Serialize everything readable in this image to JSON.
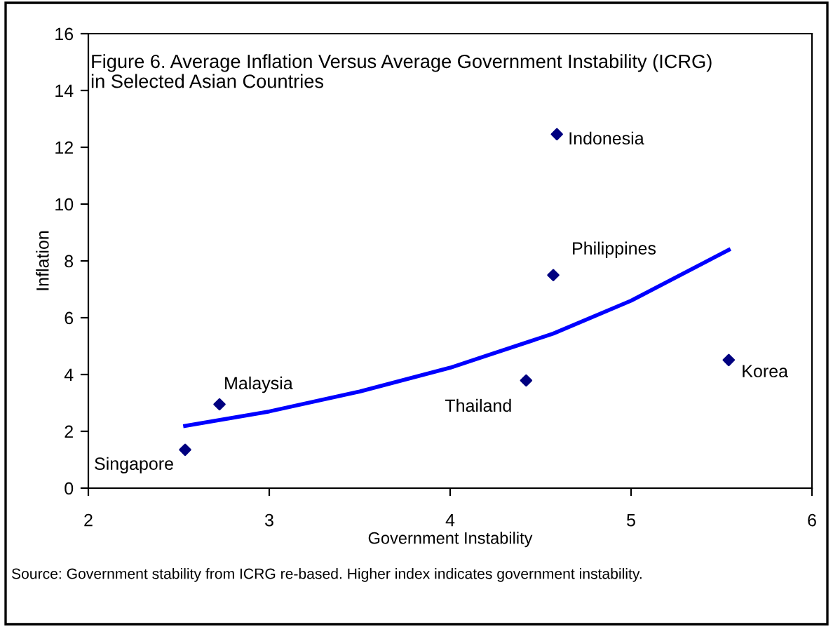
{
  "chart_data": {
    "type": "scatter",
    "title": "Figure 6. Average Inflation Versus Average Government Instability (ICRG) in Selected Asian Countries",
    "xlabel": "Government Instability",
    "ylabel": "Inflation",
    "series": [
      {
        "color": "#000080",
        "marker": "diamond",
        "x": [
          2.535,
          2.725,
          4.42,
          4.57,
          4.59,
          5.54
        ],
        "values": [
          1.35,
          2.95,
          3.79,
          7.5,
          12.46,
          4.51
        ]
      },
      {
        "type": "line",
        "color": "#0000ff",
        "marker": "none",
        "x": [
          2.535,
          3.0,
          3.5,
          4.0,
          4.57,
          5.0,
          5.54
        ],
        "values": [
          2.19,
          2.7,
          3.4,
          4.24,
          5.44,
          6.6,
          8.39
        ]
      }
    ],
    "xlim": [
      2,
      6
    ],
    "xticks": [
      2,
      3,
      4,
      5,
      6
    ],
    "ylim": [
      0,
      16
    ],
    "yticks": [
      0,
      2,
      4,
      6,
      8,
      10,
      12,
      14,
      16
    ],
    "grid": false,
    "legend": false,
    "annotations": [
      {
        "text": "Singapore",
        "x": 2.535,
        "y": 1.35
      },
      {
        "text": "Malaysia",
        "x": 2.725,
        "y": 2.95
      },
      {
        "text": "Thailand",
        "x": 4.42,
        "y": 3.79
      },
      {
        "text": "Philippines",
        "x": 4.57,
        "y": 7.5
      },
      {
        "text": "Indonesia",
        "x": 4.59,
        "y": 12.46
      },
      {
        "text": "Korea",
        "x": 5.54,
        "y": 4.51
      },
      "Source: Government stability from ICRG re-based. Higher index indicates government instability."
    ]
  }
}
